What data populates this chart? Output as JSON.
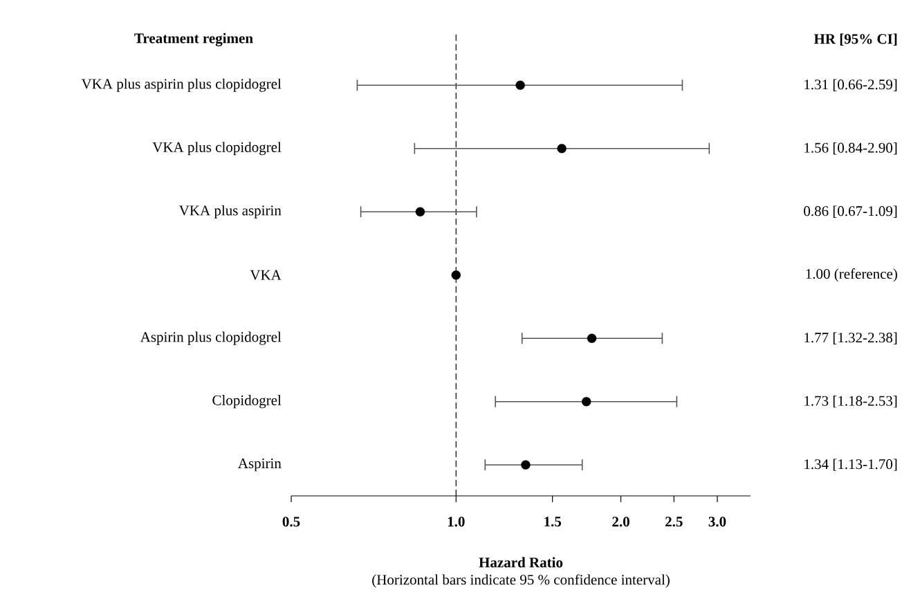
{
  "chart_data": {
    "type": "scatter",
    "orientation": "horizontal",
    "ylabel": "Treatment regimen",
    "xlabel": "Hazard Ratio",
    "categories": [
      "VKA plus aspirin plus clopidogrel",
      "VKA plus clopidogrel",
      "VKA plus aspirin",
      "VKA",
      "Aspirin plus clopidogrel",
      "Clopidogrel",
      "Aspirin"
    ],
    "values": [
      1.31,
      1.56,
      0.86,
      1.0,
      1.77,
      1.73,
      1.34
    ],
    "errors": [
      [
        0.66,
        2.59
      ],
      [
        0.84,
        2.9
      ],
      [
        0.67,
        1.09
      ],
      null,
      [
        1.32,
        2.38
      ],
      [
        1.18,
        2.53
      ],
      [
        1.13,
        1.7
      ]
    ],
    "value_labels": [
      "1.31 [0.66-2.59]",
      "1.56 [0.84-2.90]",
      "0.86 [0.67-1.09]",
      "1.00 (reference)",
      "1.77 [1.32-2.38]",
      "1.73 [1.18-2.53]",
      "1.34 [1.13-1.70]"
    ],
    "color": "#000000",
    "marker": "circle",
    "log": "x",
    "xlim": [
      0.5,
      3.45
    ],
    "xticks": [
      0.5,
      {
        "value": 1,
        "label": "1.0"
      },
      1.5,
      {
        "value": 2,
        "label": "2.0"
      },
      2.5,
      {
        "value": 3,
        "label": "3.0"
      }
    ],
    "ref_lines": [
      {
        "axis": "x",
        "value": 1,
        "line_style": "dashed",
        "color": "#000000"
      }
    ],
    "annotations": [
      "HR [95% CI]",
      "(Horizontal bars indicate 95 % confidence interval)"
    ]
  }
}
